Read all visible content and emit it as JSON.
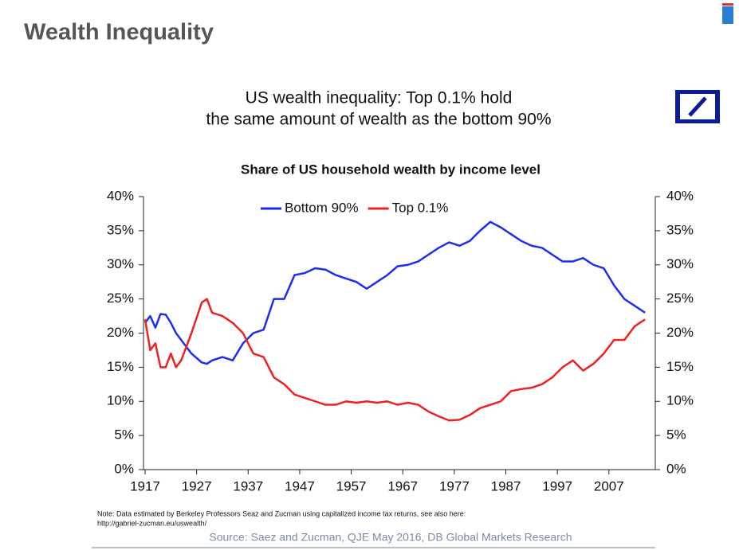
{
  "page_title": "Wealth Inequality",
  "headline": [
    "US wealth inequality: Top 0.1% hold",
    "the same amount of wealth as the bottom 90%"
  ],
  "note": [
    "Note: Data estimated by Berkeley Professors Seaz and Zucman using capitalized income tax returns, see also here:",
    "http://gabriel-zucman.eu/uswealth/"
  ],
  "source": "Source: Saez and Zucman, QJE May 2016, DB Global Markets Research",
  "chart_data": {
    "type": "line",
    "title": "Share of US household wealth by income level",
    "x": [
      1917,
      1918,
      1919,
      1920,
      1921,
      1922,
      1923,
      1924,
      1926,
      1928,
      1929,
      1930,
      1932,
      1934,
      1936,
      1938,
      1940,
      1942,
      1944,
      1946,
      1948,
      1950,
      1952,
      1954,
      1956,
      1958,
      1960,
      1962,
      1964,
      1966,
      1968,
      1970,
      1972,
      1974,
      1976,
      1978,
      1980,
      1982,
      1984,
      1986,
      1988,
      1990,
      1992,
      1994,
      1996,
      1998,
      2000,
      2002,
      2004,
      2006,
      2008,
      2010,
      2012,
      2014
    ],
    "series": [
      {
        "name": "Bottom 90%",
        "color": "#1f2bf0",
        "values": [
          21.5,
          22.5,
          20.8,
          22.8,
          22.7,
          21.5,
          20,
          19,
          17,
          15.7,
          15.5,
          16,
          16.5,
          16,
          18.5,
          20,
          20.5,
          25,
          25,
          28.5,
          28.8,
          29.5,
          29.3,
          28.5,
          28,
          27.5,
          26.5,
          27.5,
          28.5,
          29.8,
          30,
          30.5,
          31.5,
          32.5,
          33.3,
          32.8,
          33.5,
          35,
          36.3,
          35.5,
          34.5,
          33.5,
          32.8,
          32.5,
          31.5,
          30.5,
          30.5,
          31,
          30,
          29.5,
          27,
          25,
          24,
          23
        ]
      },
      {
        "name": "Top 0.1%",
        "color": "#f02020",
        "values": [
          22,
          17.5,
          18.5,
          15,
          15,
          17,
          15,
          16,
          20,
          24.5,
          25,
          23,
          22.5,
          21.5,
          20,
          17,
          16.5,
          13.5,
          12.5,
          11,
          10.5,
          10,
          9.5,
          9.5,
          10,
          9.8,
          10,
          9.8,
          10,
          9.5,
          9.8,
          9.5,
          8.5,
          7.8,
          7.2,
          7.3,
          8,
          9,
          9.5,
          10,
          11.5,
          11.8,
          12,
          12.5,
          13.5,
          15,
          16,
          14.5,
          15.5,
          17,
          19,
          19,
          21,
          22
        ]
      }
    ],
    "xlim": [
      1917,
      2016
    ],
    "xticks": [
      1917,
      1927,
      1937,
      1947,
      1957,
      1967,
      1977,
      1987,
      1997,
      2007
    ],
    "ylim": [
      0,
      40
    ],
    "yticks": [
      {
        "value": 0,
        "label": "0%"
      },
      {
        "value": 5,
        "label": "5%"
      },
      {
        "value": 10,
        "label": "10%"
      },
      {
        "value": 15,
        "label": "15%"
      },
      {
        "value": 20,
        "label": "20%"
      },
      {
        "value": 25,
        "label": "25%"
      },
      {
        "value": 30,
        "label": "30%"
      },
      {
        "value": 35,
        "label": "35%"
      },
      {
        "value": 40,
        "label": "40%"
      }
    ],
    "y2lim": [
      0,
      40
    ],
    "y2ticks": [
      {
        "value": 0,
        "label": "0%"
      },
      {
        "value": 5,
        "label": "5%"
      },
      {
        "value": 10,
        "label": "10%"
      },
      {
        "value": 15,
        "label": "15%"
      },
      {
        "value": 20,
        "label": "20%"
      },
      {
        "value": 25,
        "label": "25%"
      },
      {
        "value": 30,
        "label": "30%"
      },
      {
        "value": 35,
        "label": "35%"
      },
      {
        "value": 40,
        "label": "40%"
      }
    ],
    "grid": false,
    "legend": "top"
  }
}
